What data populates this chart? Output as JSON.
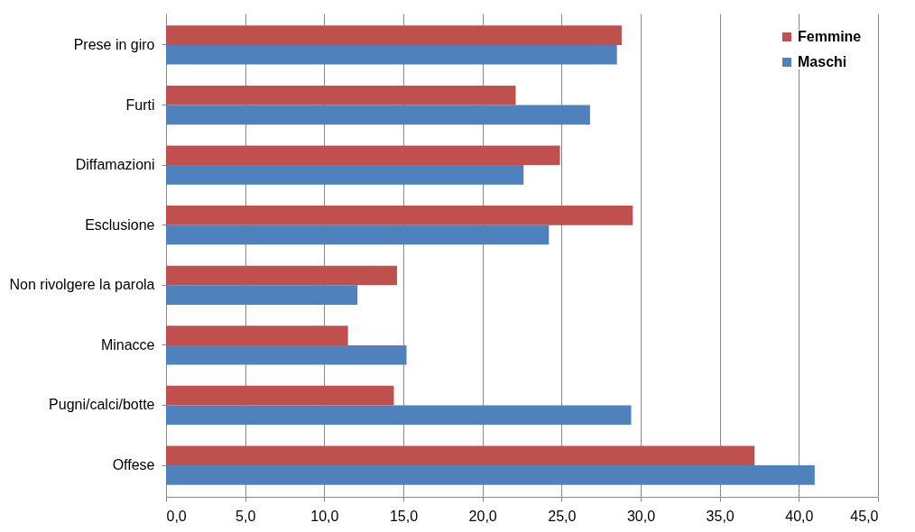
{
  "chart_data": {
    "type": "bar",
    "orientation": "horizontal",
    "categories": [
      "Prese in giro",
      "Furti",
      "Diffamazioni",
      "Esclusione",
      "Non rivolgere la parola",
      "Minacce",
      "Pugni/calci/botte",
      "Offese"
    ],
    "series": [
      {
        "name": "Femmine",
        "color": "#c0504d",
        "values": [
          28.8,
          22.1,
          24.9,
          29.5,
          14.6,
          11.5,
          14.4,
          37.2
        ]
      },
      {
        "name": "Maschi",
        "color": "#4f81bd",
        "values": [
          28.5,
          26.8,
          22.6,
          24.2,
          12.1,
          15.2,
          29.4,
          41.0
        ]
      }
    ],
    "xlim": [
      0,
      45
    ],
    "xticks": [
      {
        "value": 0,
        "label": "0,0"
      },
      {
        "value": 5,
        "label": "5,0"
      },
      {
        "value": 10,
        "label": "10,0"
      },
      {
        "value": 15,
        "label": "15,0"
      },
      {
        "value": 20,
        "label": "20,0"
      },
      {
        "value": 25,
        "label": "25,0"
      },
      {
        "value": 30,
        "label": "30,0"
      },
      {
        "value": 35,
        "label": "35,0"
      },
      {
        "value": 40,
        "label": "40,0"
      },
      {
        "value": 45,
        "label": "45,0"
      }
    ],
    "grid": "x",
    "legend": "top right"
  }
}
